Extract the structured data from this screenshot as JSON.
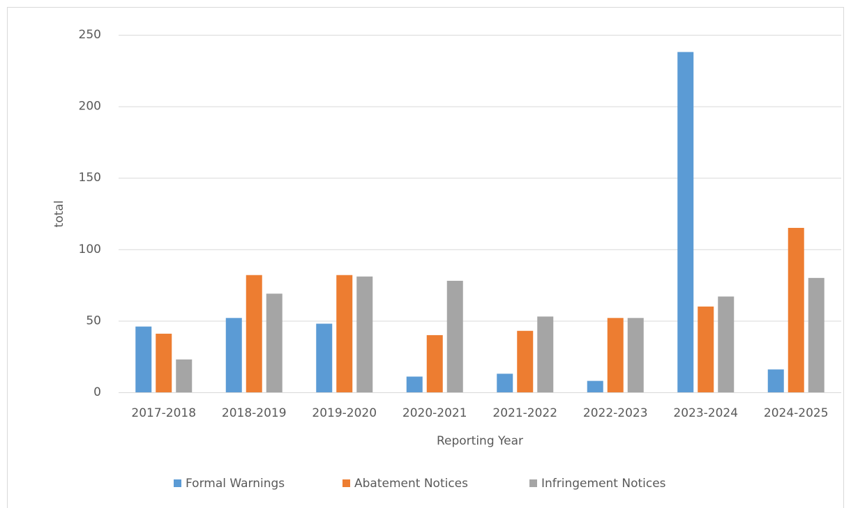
{
  "chart_data": {
    "type": "bar",
    "x_label": "Reporting Year",
    "y_label": "total",
    "categories": [
      "2017-2018",
      "2018-2019",
      "2019-2020",
      "2020-2021",
      "2021-2022",
      "2022-2023",
      "2023-2024",
      "2024-2025"
    ],
    "series": [
      {
        "name": "Formal Warnings",
        "color": "#5b9bd5",
        "values": [
          46,
          52,
          48,
          11,
          13,
          8,
          238,
          16
        ]
      },
      {
        "name": "Abatement Notices",
        "color": "#ed7d31",
        "values": [
          41,
          82,
          82,
          40,
          43,
          52,
          60,
          115
        ]
      },
      {
        "name": "Infringement Notices",
        "color": "#a5a5a5",
        "values": [
          23,
          69,
          81,
          78,
          53,
          52,
          67,
          80
        ]
      }
    ],
    "ylim": [
      0,
      250
    ],
    "yticks": [
      0,
      50,
      100,
      150,
      200,
      250
    ],
    "grid": true,
    "legend": "bottom"
  }
}
